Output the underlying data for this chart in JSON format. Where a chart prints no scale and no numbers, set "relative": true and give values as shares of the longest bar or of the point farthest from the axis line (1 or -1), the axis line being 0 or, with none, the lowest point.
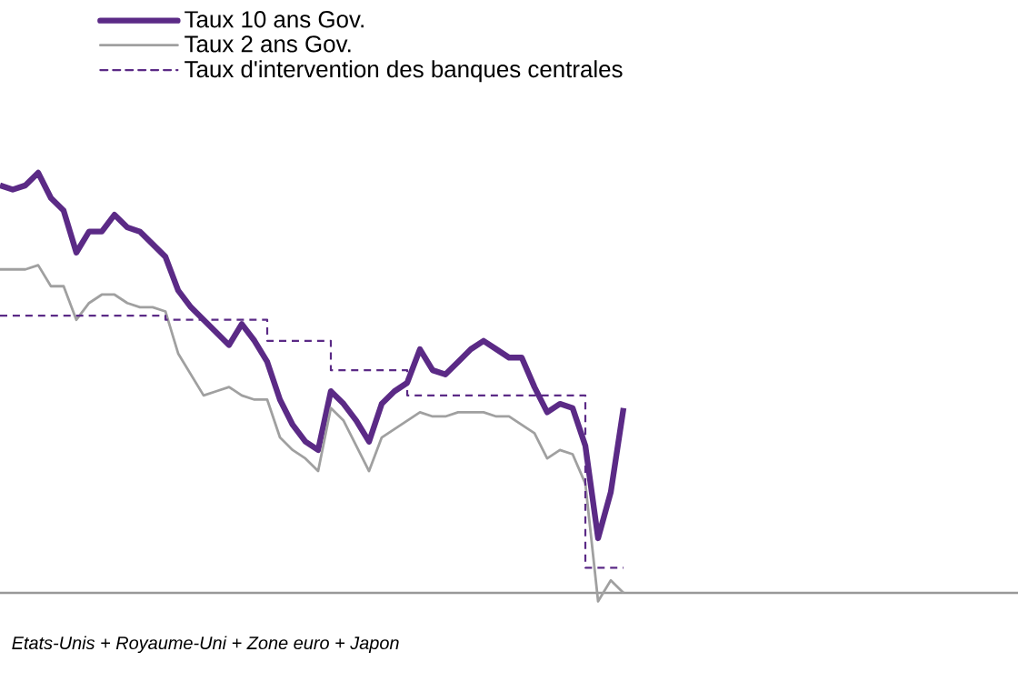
{
  "chart_data": {
    "type": "line",
    "relative": true,
    "legend": "top",
    "categories": [
      null,
      null,
      null,
      null,
      null,
      null,
      null,
      null,
      null,
      null,
      null,
      null,
      null,
      null,
      null,
      null,
      null,
      null,
      null,
      null,
      null,
      null,
      null,
      null,
      null,
      null,
      null,
      null,
      null,
      null,
      null,
      null,
      null,
      null,
      null,
      null,
      null,
      null,
      null,
      null,
      null,
      null,
      null,
      null,
      null,
      null,
      null,
      null,
      null,
      null
    ],
    "series": [
      {
        "name": "Taux 10 ans Gov.",
        "color": "#5b2a86",
        "line_style": "solid",
        "values": [
          0.97,
          0.96,
          0.97,
          1.0,
          0.94,
          0.91,
          0.81,
          0.86,
          0.86,
          0.9,
          0.87,
          0.86,
          0.83,
          0.8,
          0.72,
          0.68,
          0.65,
          0.62,
          0.59,
          0.64,
          0.6,
          0.55,
          0.46,
          0.4,
          0.36,
          0.34,
          0.48,
          0.45,
          0.41,
          0.36,
          0.45,
          0.48,
          0.5,
          0.58,
          0.53,
          0.52,
          0.55,
          0.58,
          0.6,
          0.58,
          0.56,
          0.56,
          0.49,
          0.43,
          0.45,
          0.44,
          0.35,
          0.13,
          0.24,
          0.44
        ]
      },
      {
        "name": "Taux 2 ans Gov.",
        "color": "#a0a0a0",
        "line_style": "solid",
        "values": [
          0.77,
          0.77,
          0.77,
          0.78,
          0.73,
          0.73,
          0.65,
          0.69,
          0.71,
          0.71,
          0.69,
          0.68,
          0.68,
          0.67,
          0.57,
          0.52,
          0.47,
          0.48,
          0.49,
          0.47,
          0.46,
          0.46,
          0.37,
          0.34,
          0.32,
          0.29,
          0.44,
          0.41,
          0.35,
          0.29,
          0.37,
          0.39,
          0.41,
          0.43,
          0.42,
          0.42,
          0.43,
          0.43,
          0.43,
          0.42,
          0.42,
          0.4,
          0.38,
          0.32,
          0.34,
          0.33,
          0.26,
          -0.02,
          0.03,
          0.0
        ]
      },
      {
        "name": "Taux d'intervention des banques centrales",
        "color": "#5b2a86",
        "type": "step",
        "line_style": "dashed",
        "values": [
          0.66,
          0.66,
          0.66,
          0.66,
          0.66,
          0.66,
          0.66,
          0.66,
          0.66,
          0.66,
          0.66,
          0.66,
          0.66,
          0.66,
          0.65,
          0.65,
          0.65,
          0.65,
          0.65,
          0.65,
          0.65,
          0.65,
          0.6,
          0.6,
          0.6,
          0.6,
          0.6,
          0.53,
          0.53,
          0.53,
          0.53,
          0.53,
          0.53,
          0.47,
          0.47,
          0.47,
          0.47,
          0.47,
          0.47,
          0.47,
          0.47,
          0.47,
          0.47,
          0.47,
          0.47,
          0.47,
          0.47,
          0.06,
          0.06,
          0.06
        ]
      }
    ],
    "annotations": [
      "Etats-Unis + Royaume-Uni + Zone euro + Japon"
    ]
  }
}
